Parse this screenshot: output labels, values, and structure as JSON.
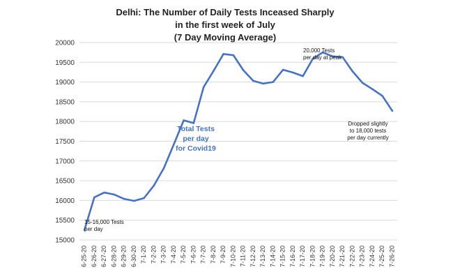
{
  "chart_data": {
    "type": "line",
    "title_lines": [
      "Delhi: The Number of Daily Tests Inceased Sharply",
      "in the first week of July",
      "(7 Day Moving Average)"
    ],
    "xlabel": "",
    "ylabel": "",
    "ylim": [
      15000,
      20000
    ],
    "yticks": [
      15000,
      15500,
      16000,
      16500,
      17000,
      17500,
      18000,
      18500,
      19000,
      19500,
      20000
    ],
    "grid": "horizontal",
    "legend": "none",
    "series_color": "#4472C4",
    "categories": [
      "6-25-20",
      "6-26-20",
      "6-27-20",
      "6-28-20",
      "6-29-20",
      "6-30-20",
      "7-1-20",
      "7-2-20",
      "7-3-20",
      "7-4-20",
      "7-5-20",
      "7-6-20",
      "7-7-20",
      "7-8-20",
      "7-9-20",
      "7-10-20",
      "7-11-20",
      "7-12-20",
      "7-13-20",
      "7-14-20",
      "7-15-20",
      "7-16-20",
      "7-17-20",
      "7-18-20",
      "7-19-20",
      "7-20-20",
      "7-21-20",
      "7-22-20",
      "7-23-20",
      "7-24-20",
      "7-25-20",
      "7-26-20"
    ],
    "values": [
      15250,
      16080,
      16200,
      16150,
      16040,
      15990,
      16060,
      16380,
      16820,
      17420,
      18030,
      17960,
      18870,
      19280,
      19710,
      19680,
      19300,
      19030,
      18960,
      19000,
      19310,
      19240,
      19150,
      19590,
      19750,
      19650,
      19630,
      19270,
      18980,
      18820,
      18650,
      18270
    ],
    "annotations": [
      {
        "id": "start",
        "lines": [
          "15-16,000 Tests",
          "per day"
        ]
      },
      {
        "id": "middle",
        "lines": [
          "Total Tests",
          "per day",
          "for Covid19"
        ]
      },
      {
        "id": "peak",
        "lines": [
          "20,000 Tests",
          "per day at peak"
        ]
      },
      {
        "id": "end",
        "lines": [
          "Dropped slightly",
          "to 18,000 tests",
          "per day currently"
        ]
      }
    ]
  }
}
